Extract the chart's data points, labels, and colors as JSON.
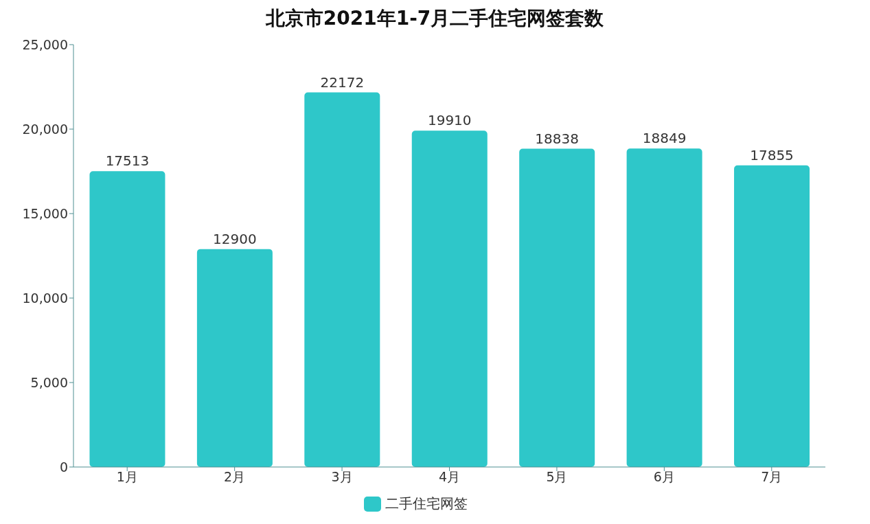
{
  "chart_data": {
    "type": "bar",
    "title": "北京市2021年1-7月二手住宅网签套数",
    "categories": [
      "1月",
      "2月",
      "3月",
      "4月",
      "5月",
      "6月",
      "7月"
    ],
    "series": [
      {
        "name": "二手住宅网签",
        "color": "#2ec7c9",
        "values": [
          17513,
          12900,
          22172,
          19910,
          18838,
          18849,
          17855
        ]
      }
    ],
    "ylim": [
      0,
      25000
    ],
    "yticks": [
      0,
      {
        "value": 5000,
        "label": "5,000"
      },
      {
        "value": 10000,
        "label": "10,000"
      },
      {
        "value": 15000,
        "label": "15,000"
      },
      {
        "value": 20000,
        "label": "20,000"
      },
      {
        "value": 25000,
        "label": "25,000"
      }
    ],
    "grid": false,
    "legend": "bottom",
    "data_labels": true
  }
}
